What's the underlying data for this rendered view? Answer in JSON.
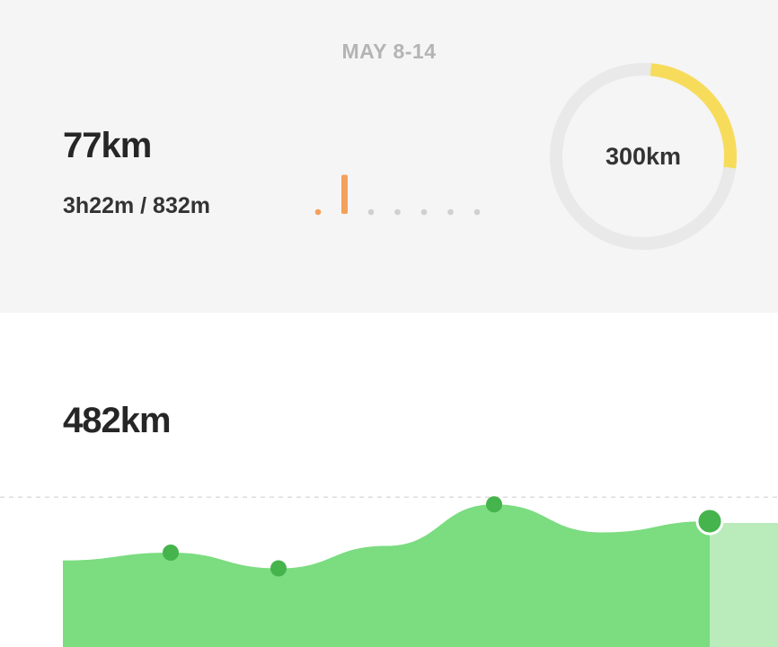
{
  "week_summary": {
    "range": "MAY 8-14",
    "distance": "77km",
    "detail": "3h22m / 832m",
    "daily_activity": [
      0.05,
      0.75,
      0,
      0,
      0,
      0,
      0
    ],
    "daily_colors": {
      "active": "#f5a05a",
      "inactive": "#d0d0d0"
    },
    "goal": {
      "label": "300km",
      "progress": 0.2567,
      "ring_color": "#f7dc5c",
      "track_color": "#e9e9e9"
    }
  },
  "total": {
    "distance": "482km",
    "trend": [
      0.45,
      0.52,
      0.38,
      0.58,
      0.95,
      0.7,
      0.8
    ],
    "marked_points": [
      0.58,
      0.38,
      0.95,
      0.8
    ],
    "colors": {
      "fill": "#7bdc80",
      "fill_light": "#b9ecba",
      "marker": "#45b44c",
      "guide": "#dcdcdc"
    }
  }
}
